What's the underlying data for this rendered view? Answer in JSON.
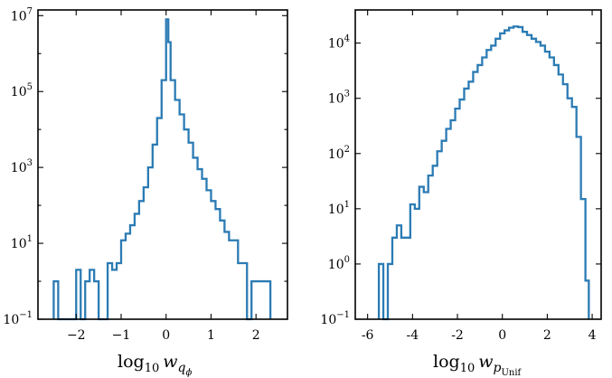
{
  "chart_data": [
    {
      "type": "histogram",
      "xlabel": {
        "base": "log",
        "sub": "10",
        "var": "w",
        "var_sub": "q",
        "var_subsub": "ϕ"
      },
      "xlim": [
        -2.85,
        2.7
      ],
      "ylim_log10": [
        -1,
        7.15
      ],
      "x_ticks": [
        -2,
        -1,
        0,
        1,
        2
      ],
      "x_tick_labels": [
        "−2",
        "−1",
        "0",
        "1",
        "2"
      ],
      "y_ticks_log10": [
        -1,
        1,
        3,
        5,
        7
      ],
      "y_tick_labels": [
        {
          "base": "10",
          "exp": "−1"
        },
        {
          "base": "10",
          "exp": "1"
        },
        {
          "base": "10",
          "exp": "3"
        },
        {
          "base": "10",
          "exp": "5"
        },
        {
          "base": "10",
          "exp": "7"
        }
      ],
      "color": "#2b7bb4",
      "bin_width": 0.1,
      "bins": [
        {
          "x0": -2.5,
          "count": 1
        },
        {
          "x0": -2.4,
          "count": 0
        },
        {
          "x0": -2.3,
          "count": 0
        },
        {
          "x0": -2.2,
          "count": 0
        },
        {
          "x0": -2.1,
          "count": 0
        },
        {
          "x0": -2.0,
          "count": 2
        },
        {
          "x0": -1.9,
          "count": 0
        },
        {
          "x0": -1.8,
          "count": 1
        },
        {
          "x0": -1.7,
          "count": 2
        },
        {
          "x0": -1.6,
          "count": 1
        },
        {
          "x0": -1.5,
          "count": 0
        },
        {
          "x0": -1.4,
          "count": 0
        },
        {
          "x0": -1.3,
          "count": 3
        },
        {
          "x0": -1.2,
          "count": 2
        },
        {
          "x0": -1.1,
          "count": 3
        },
        {
          "x0": -1.0,
          "count": 12
        },
        {
          "x0": -0.9,
          "count": 18
        },
        {
          "x0": -0.8,
          "count": 30
        },
        {
          "x0": -0.7,
          "count": 60
        },
        {
          "x0": -0.6,
          "count": 130
        },
        {
          "x0": -0.5,
          "count": 300
        },
        {
          "x0": -0.4,
          "count": 1000
        },
        {
          "x0": -0.3,
          "count": 4000
        },
        {
          "x0": -0.2,
          "count": 20000
        },
        {
          "x0": -0.1,
          "count": 200000
        },
        {
          "x0": 0.0,
          "count": 8000000
        },
        {
          "x0": 0.05,
          "count": 2000000
        },
        {
          "x0": 0.1,
          "count": 200000
        },
        {
          "x0": 0.2,
          "count": 60000
        },
        {
          "x0": 0.3,
          "count": 25000
        },
        {
          "x0": 0.4,
          "count": 10000
        },
        {
          "x0": 0.5,
          "count": 4500
        },
        {
          "x0": 0.6,
          "count": 1800
        },
        {
          "x0": 0.7,
          "count": 900
        },
        {
          "x0": 0.8,
          "count": 500
        },
        {
          "x0": 0.9,
          "count": 250
        },
        {
          "x0": 1.0,
          "count": 130
        },
        {
          "x0": 1.1,
          "count": 80
        },
        {
          "x0": 1.2,
          "count": 40
        },
        {
          "x0": 1.3,
          "count": 20
        },
        {
          "x0": 1.4,
          "count": 12
        },
        {
          "x0": 1.5,
          "count": 12
        },
        {
          "x0": 1.6,
          "count": 3
        },
        {
          "x0": 1.7,
          "count": 3
        },
        {
          "x0": 1.8,
          "count": 0
        },
        {
          "x0": 1.9,
          "count": 1
        },
        {
          "x0": 2.0,
          "count": 1
        },
        {
          "x0": 2.1,
          "count": 1
        },
        {
          "x0": 2.2,
          "count": 1
        }
      ],
      "x_end": 2.32
    },
    {
      "type": "histogram",
      "xlabel": {
        "base": "log",
        "sub": "10",
        "var": "w",
        "var_sub": "p",
        "var_subsub": "Unif"
      },
      "xlim": [
        -6.55,
        4.4
      ],
      "ylim_log10": [
        -1,
        4.6
      ],
      "x_ticks": [
        -6,
        -4,
        -2,
        0,
        2,
        4
      ],
      "x_tick_labels": [
        "-6",
        "-4",
        "-2",
        "0",
        "2",
        "4"
      ],
      "y_ticks_log10": [
        -1,
        0,
        1,
        2,
        3,
        4
      ],
      "y_tick_labels": [
        {
          "base": "10",
          "exp": "−1"
        },
        {
          "base": "10",
          "exp": "0"
        },
        {
          "base": "10",
          "exp": "1"
        },
        {
          "base": "10",
          "exp": "2"
        },
        {
          "base": "10",
          "exp": "3"
        },
        {
          "base": "10",
          "exp": "4"
        }
      ],
      "color": "#2b7bb4",
      "bin_width": 0.2,
      "bins": [
        {
          "x0": -5.5,
          "count": 1
        },
        {
          "x0": -5.3,
          "count": 0
        },
        {
          "x0": -5.1,
          "count": 1
        },
        {
          "x0": -4.9,
          "count": 3
        },
        {
          "x0": -4.7,
          "count": 5
        },
        {
          "x0": -4.5,
          "count": 3
        },
        {
          "x0": -4.3,
          "count": 3
        },
        {
          "x0": -4.1,
          "count": 12
        },
        {
          "x0": -3.9,
          "count": 10
        },
        {
          "x0": -3.7,
          "count": 25
        },
        {
          "x0": -3.5,
          "count": 20
        },
        {
          "x0": -3.3,
          "count": 40
        },
        {
          "x0": -3.1,
          "count": 60
        },
        {
          "x0": -2.9,
          "count": 110
        },
        {
          "x0": -2.7,
          "count": 170
        },
        {
          "x0": -2.5,
          "count": 280
        },
        {
          "x0": -2.3,
          "count": 400
        },
        {
          "x0": -2.1,
          "count": 650
        },
        {
          "x0": -1.9,
          "count": 950
        },
        {
          "x0": -1.7,
          "count": 1500
        },
        {
          "x0": -1.5,
          "count": 2000
        },
        {
          "x0": -1.3,
          "count": 3000
        },
        {
          "x0": -1.1,
          "count": 4000
        },
        {
          "x0": -0.9,
          "count": 5500
        },
        {
          "x0": -0.7,
          "count": 7500
        },
        {
          "x0": -0.5,
          "count": 9000
        },
        {
          "x0": -0.3,
          "count": 12000
        },
        {
          "x0": -0.1,
          "count": 15000
        },
        {
          "x0": 0.1,
          "count": 17000
        },
        {
          "x0": 0.3,
          "count": 19000
        },
        {
          "x0": 0.5,
          "count": 20000
        },
        {
          "x0": 0.7,
          "count": 19500
        },
        {
          "x0": 0.9,
          "count": 16000
        },
        {
          "x0": 1.1,
          "count": 14000
        },
        {
          "x0": 1.3,
          "count": 12000
        },
        {
          "x0": 1.5,
          "count": 10500
        },
        {
          "x0": 1.7,
          "count": 9000
        },
        {
          "x0": 1.9,
          "count": 7000
        },
        {
          "x0": 2.1,
          "count": 5500
        },
        {
          "x0": 2.3,
          "count": 4000
        },
        {
          "x0": 2.5,
          "count": 2700
        },
        {
          "x0": 2.7,
          "count": 1800
        },
        {
          "x0": 2.9,
          "count": 1000
        },
        {
          "x0": 3.1,
          "count": 700
        },
        {
          "x0": 3.3,
          "count": 200
        },
        {
          "x0": 3.5,
          "count": 15
        },
        {
          "x0": 3.7,
          "count": 0.5
        }
      ],
      "x_end": 3.85
    }
  ]
}
